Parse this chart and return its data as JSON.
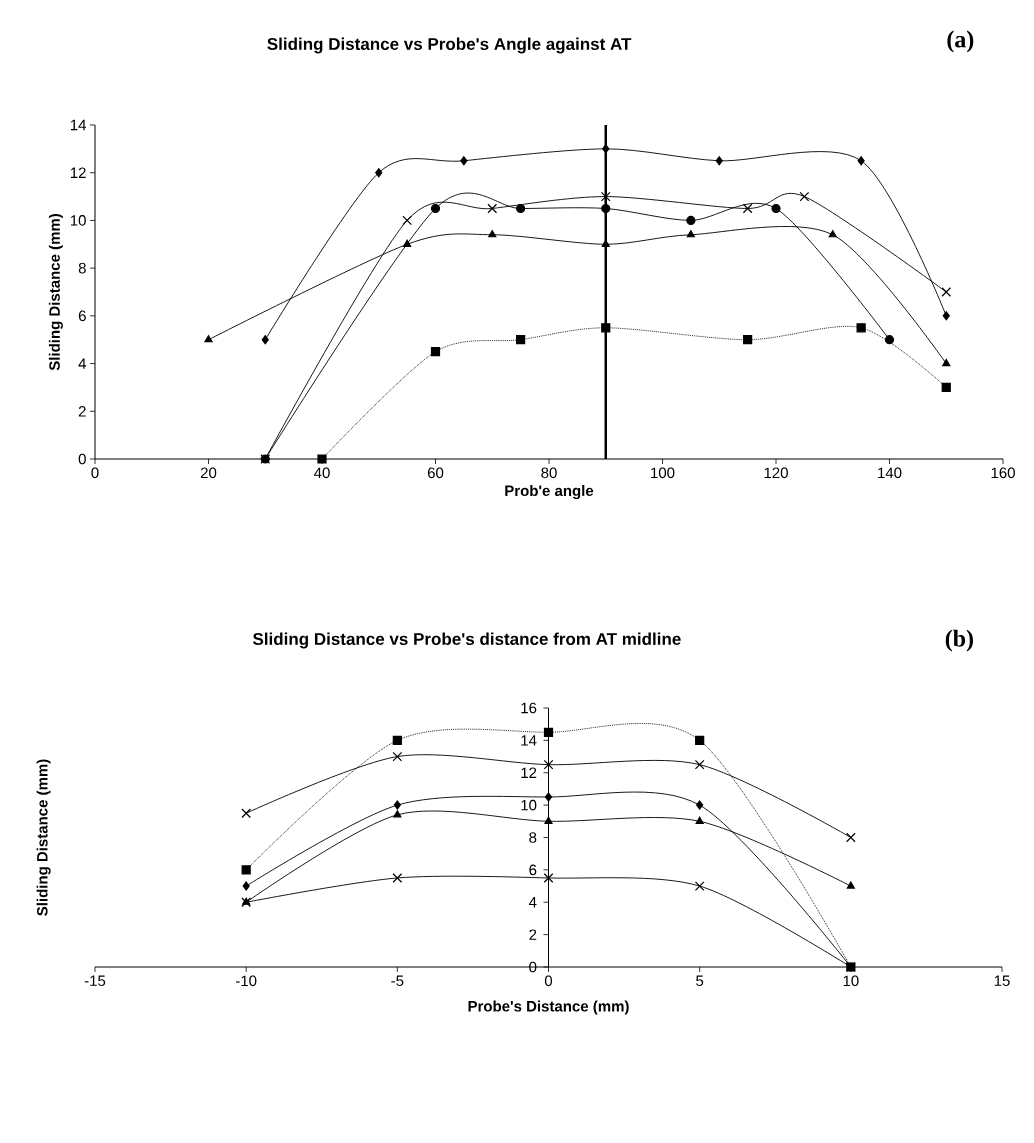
{
  "chart_data": [
    {
      "type": "line",
      "title": "Sliding Distance vs Probe's Angle against AT",
      "xlabel": "Prob'e angle",
      "ylabel": "Sliding Distance (mm)",
      "annotations": [
        "(a)"
      ],
      "xlim": [
        0,
        160
      ],
      "ylim": [
        0,
        14
      ],
      "xticks": [
        0,
        20,
        40,
        60,
        80,
        100,
        120,
        140,
        160
      ],
      "yticks": [
        0,
        2,
        4,
        6,
        8,
        10,
        12,
        14
      ],
      "ref_lines": [
        {
          "axis": "x",
          "value": 90
        }
      ],
      "series": [
        {
          "color": "#000000",
          "marker": "diamond",
          "line_style": "solid",
          "x": [
            30,
            50,
            65,
            90,
            110,
            135,
            150
          ],
          "values": [
            5,
            12,
            12.5,
            13,
            12.5,
            12.5,
            6
          ]
        },
        {
          "color": "#000000",
          "marker": "triangle",
          "line_style": "solid",
          "x": [
            20,
            55,
            70,
            90,
            105,
            130,
            150
          ],
          "values": [
            5,
            9,
            9.4,
            9,
            9.4,
            9.4,
            4
          ]
        },
        {
          "color": "#000000",
          "marker": "circle",
          "line_style": "solid",
          "x": [
            30,
            60,
            75,
            90,
            105,
            120,
            140
          ],
          "values": [
            0,
            10.5,
            10.5,
            10.5,
            10,
            10.5,
            5
          ]
        },
        {
          "color": "#000000",
          "marker": "cross",
          "line_style": "solid",
          "x": [
            30,
            55,
            70,
            90,
            115,
            125,
            150
          ],
          "values": [
            0,
            10,
            10.5,
            11,
            10.5,
            11,
            7
          ]
        },
        {
          "color": "#000000",
          "marker": "square",
          "line_style": "dotted",
          "x": [
            40,
            60,
            75,
            90,
            115,
            135,
            150
          ],
          "values": [
            0,
            4.5,
            5,
            5.5,
            5,
            5.5,
            3
          ]
        }
      ]
    },
    {
      "type": "line",
      "title": "Sliding Distance vs Probe's distance from AT midline",
      "xlabel": "Probe's Distance (mm)",
      "ylabel": "Sliding Distance (mm)",
      "annotations": [
        "(b)"
      ],
      "xlim": [
        -15,
        15
      ],
      "ylim": [
        0,
        16
      ],
      "xticks": [
        -15,
        -10,
        -5,
        0,
        5,
        10,
        15
      ],
      "yticks": [
        0,
        2,
        4,
        6,
        8,
        10,
        12,
        14,
        16
      ],
      "series": [
        {
          "color": "#000000",
          "marker": "square",
          "line_style": "dotted",
          "x": [
            -10,
            -5,
            0,
            5,
            10
          ],
          "values": [
            6,
            14,
            14.5,
            14,
            0
          ]
        },
        {
          "color": "#000000",
          "marker": "cross",
          "line_style": "solid",
          "x": [
            -10,
            -5,
            0,
            5,
            10
          ],
          "values": [
            9.5,
            13,
            12.5,
            12.5,
            8
          ]
        },
        {
          "color": "#000000",
          "marker": "diamond",
          "line_style": "solid",
          "x": [
            -10,
            -5,
            0,
            5,
            10
          ],
          "values": [
            5,
            10,
            10.5,
            10,
            0
          ]
        },
        {
          "color": "#000000",
          "marker": "triangle",
          "line_style": "solid",
          "x": [
            -10,
            -5,
            0,
            5,
            10
          ],
          "values": [
            4,
            9.4,
            9,
            9,
            5
          ]
        },
        {
          "color": "#000000",
          "marker": "cross",
          "line_style": "solid",
          "x": [
            -10,
            -5,
            0,
            5,
            10
          ],
          "values": [
            4,
            5.5,
            5.5,
            5,
            0
          ]
        }
      ]
    }
  ]
}
